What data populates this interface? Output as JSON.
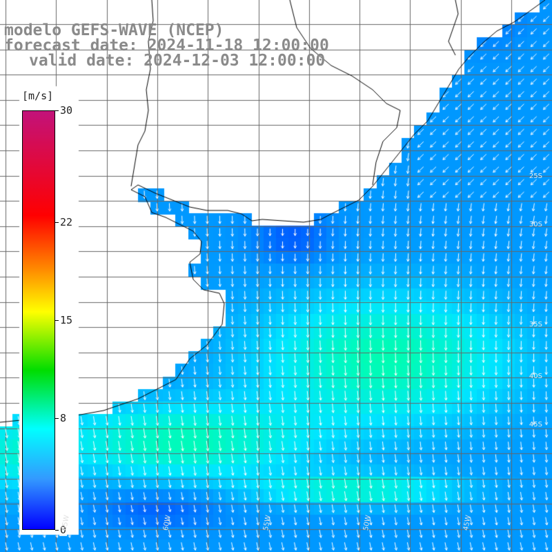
{
  "title": {
    "line1": "modelo GEFS-WAVE (NCEP)",
    "line2": "forecast date: 2024-11-18 12:00:00",
    "line3": "valid date: 2024-12-03 12:00:00"
  },
  "colorbar": {
    "unit": "[m/s]",
    "min": 0,
    "max": 30,
    "ticks": [
      "30",
      "22",
      "15",
      "8",
      "0"
    ],
    "tick_values": [
      30,
      22,
      15,
      8,
      0
    ],
    "colors": [
      "#0000ff",
      "#3399ff",
      "#00ffff",
      "#00dd00",
      "#ffff00",
      "#ff8c00",
      "#ff0000",
      "#c2127a"
    ]
  },
  "map": {
    "land_color": "#ffffff",
    "grid_color": "#555555",
    "coast_color": "#000000",
    "arrow_color": "#ffffff",
    "lat_labels": [
      "25S",
      "30S",
      "35S",
      "40S",
      "45S"
    ],
    "lon_labels": [
      "65W",
      "60W",
      "55W",
      "50W",
      "45W"
    ]
  }
}
